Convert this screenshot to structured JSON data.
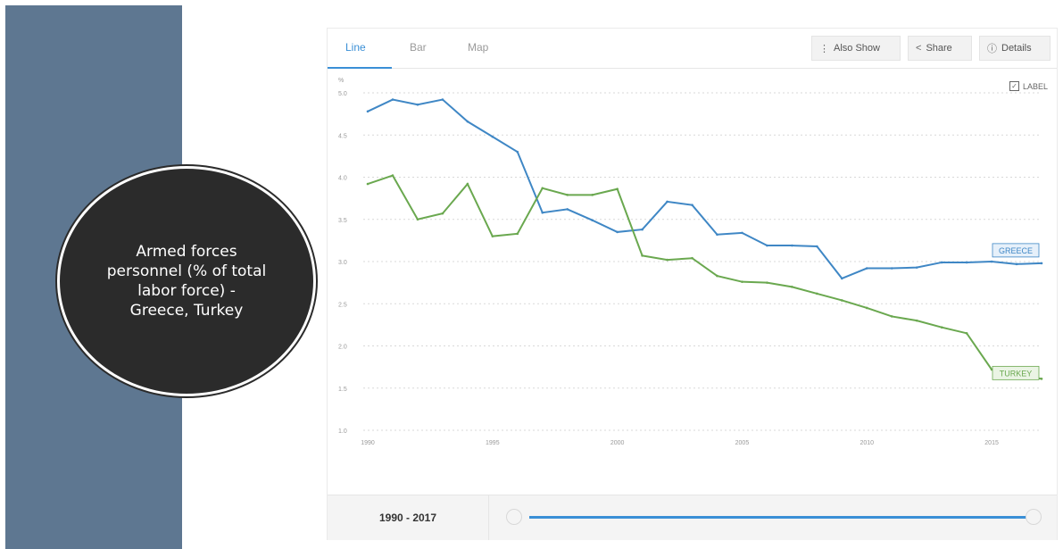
{
  "callout": {
    "text": "Armed forces personnel (% of total labor force) - Greece, Turkey"
  },
  "tabs": [
    {
      "label": "Line"
    },
    {
      "label": "Bar"
    },
    {
      "label": "Map"
    }
  ],
  "toolbar": {
    "also_show": "Also Show",
    "share": "Share",
    "details": "Details"
  },
  "label_toggle": "LABEL",
  "footer": {
    "range": "1990 - 2017"
  },
  "colors": {
    "greece": "#3f87c5",
    "turkey": "#6aa84f",
    "accent": "#3a8fd6",
    "sidebar": "#5e7791",
    "circle": "#2b2b2b"
  },
  "chart_data": {
    "type": "line",
    "ylabel": "%",
    "ylim": [
      1.0,
      5.0
    ],
    "yticks": [
      "5.0",
      "4.5",
      "4.0",
      "3.5",
      "3.0",
      "2.5",
      "2.0",
      "1.5",
      "1.0"
    ],
    "xlim": [
      1990,
      2017
    ],
    "xticks": [
      "1990",
      "1995",
      "2000",
      "2005",
      "2010",
      "2015"
    ],
    "grid": true,
    "x": [
      1990,
      1991,
      1992,
      1993,
      1994,
      1995,
      1996,
      1997,
      1998,
      1999,
      2000,
      2001,
      2002,
      2003,
      2004,
      2005,
      2006,
      2007,
      2008,
      2009,
      2010,
      2011,
      2012,
      2013,
      2014,
      2015,
      2016,
      2017
    ],
    "series": [
      {
        "name": "GREECE",
        "color": "#3f87c5",
        "values": [
          4.78,
          4.92,
          4.86,
          4.92,
          4.66,
          4.48,
          4.3,
          3.58,
          3.62,
          3.49,
          3.35,
          3.38,
          3.71,
          3.67,
          3.32,
          3.34,
          3.19,
          3.19,
          3.18,
          2.8,
          2.92,
          2.92,
          2.93,
          2.99,
          2.99,
          3.0,
          2.97,
          2.98
        ]
      },
      {
        "name": "TURKEY",
        "color": "#6aa84f",
        "values": [
          3.92,
          4.02,
          3.5,
          3.57,
          3.92,
          3.3,
          3.33,
          3.87,
          3.79,
          3.79,
          3.86,
          3.07,
          3.02,
          3.04,
          2.83,
          2.76,
          2.75,
          2.7,
          2.62,
          2.54,
          2.45,
          2.35,
          2.3,
          2.22,
          2.15,
          1.72,
          1.66,
          1.61
        ]
      }
    ]
  }
}
